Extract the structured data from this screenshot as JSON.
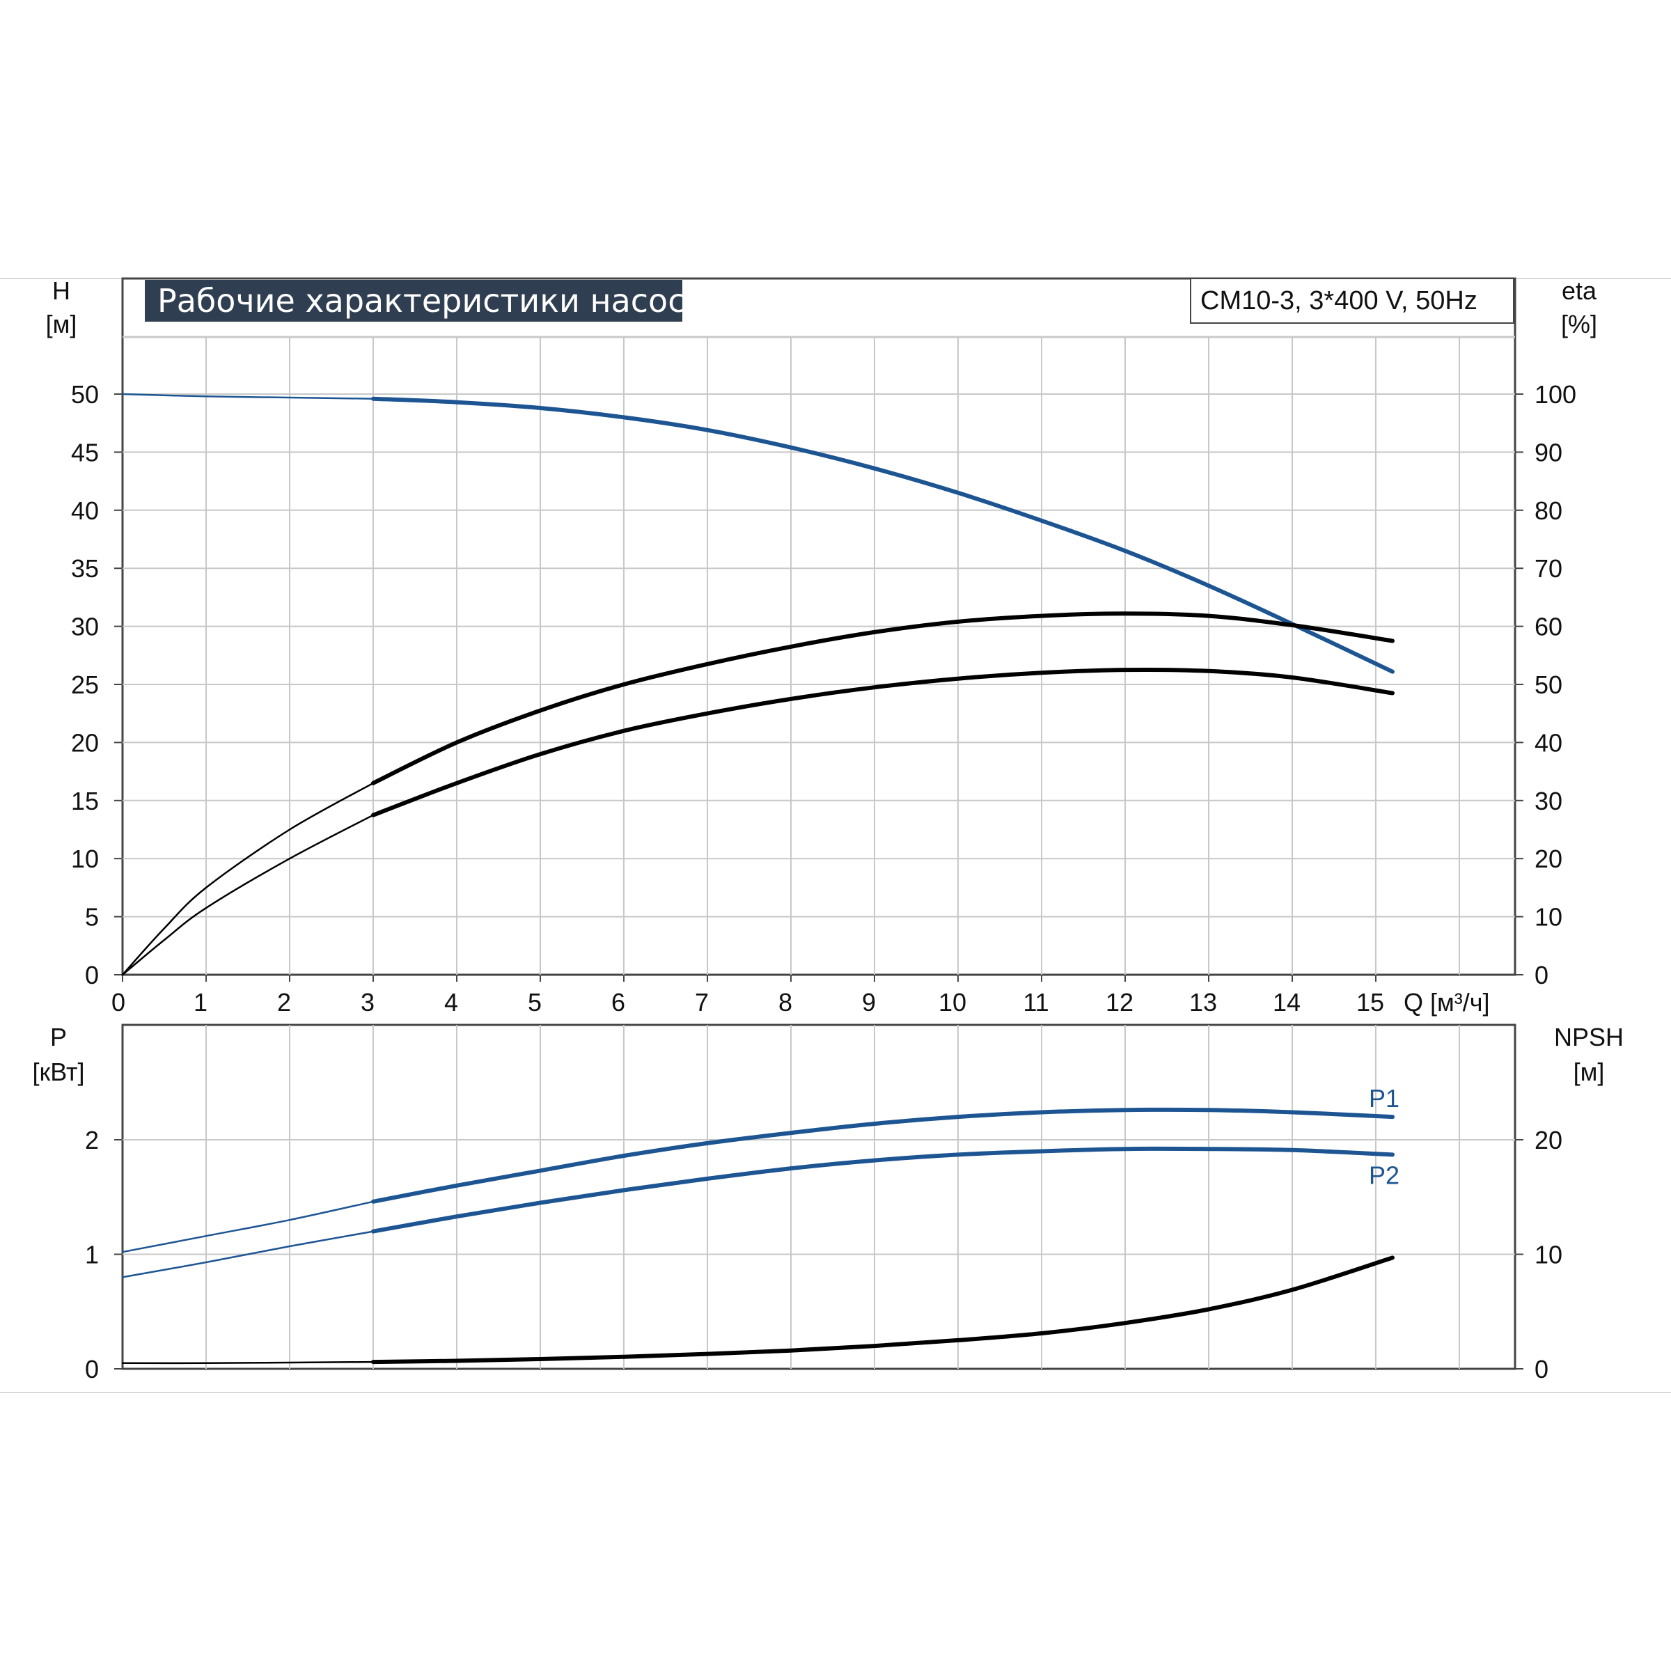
{
  "title": "Рабочие характеристики насоса",
  "model": "CM10-3, 3*400 V, 50Hz",
  "colors": {
    "blue": "#1d5593",
    "black": "#000000",
    "grid": "#c8c8c8",
    "title_bg": "#2f3e50"
  },
  "chart_data": [
    {
      "panel": "top",
      "type": "line",
      "x_label": "Q [м³/ч]",
      "x_ticks": [
        "0",
        "1",
        "2",
        "3",
        "4",
        "5",
        "6",
        "7",
        "8",
        "9",
        "10",
        "11",
        "12",
        "13",
        "14",
        "15"
      ],
      "xlim": [
        0,
        16.5
      ],
      "y_left_label": [
        "H",
        "[м]"
      ],
      "y_left_ticks": [
        "0",
        "5",
        "10",
        "15",
        "20",
        "25",
        "30",
        "35",
        "40",
        "45",
        "50"
      ],
      "y_left_lim": [
        0,
        55
      ],
      "y_right_label": [
        "eta",
        "[%]"
      ],
      "y_right_ticks": [
        "0",
        "10",
        "20",
        "30",
        "40",
        "50",
        "60",
        "70",
        "80",
        "90",
        "100"
      ],
      "y_right_lim": [
        0,
        110
      ],
      "grid": true,
      "series": [
        {
          "name": "",
          "axis": "left",
          "color": "#1d5593",
          "dashed_before": 3,
          "x": [
            0,
            1,
            2,
            3,
            4,
            5,
            6,
            7,
            8,
            9,
            10,
            11,
            12,
            13,
            14,
            15.2
          ],
          "y": [
            50,
            49.8,
            49.7,
            49.6,
            49.3,
            48.8,
            48.0,
            46.9,
            45.4,
            43.6,
            41.5,
            39.1,
            36.5,
            33.5,
            30.2,
            26.1
          ]
        },
        {
          "name": "",
          "axis": "right",
          "color": "#000000",
          "dashed_before": 3,
          "x": [
            0,
            0.5,
            1,
            2,
            3,
            4,
            5,
            6,
            7,
            8,
            9,
            10,
            11,
            12,
            13,
            14,
            15.2
          ],
          "y": [
            0,
            8,
            15,
            25,
            33,
            40,
            45.5,
            50,
            53.5,
            56.5,
            59,
            60.8,
            61.8,
            62.2,
            61.8,
            60.2,
            57.5
          ]
        },
        {
          "name": "",
          "axis": "right",
          "color": "#000000",
          "dashed_before": 3,
          "x": [
            0,
            0.5,
            1,
            2,
            3,
            4,
            5,
            6,
            7,
            8,
            9,
            10,
            11,
            12,
            13,
            14,
            15.2
          ],
          "y": [
            0,
            6,
            11.5,
            20,
            27.5,
            33,
            38,
            42,
            45,
            47.5,
            49.5,
            51,
            52,
            52.5,
            52.3,
            51.2,
            48.5
          ]
        }
      ]
    },
    {
      "panel": "bottom",
      "type": "line",
      "x_ticks": [],
      "xlim": [
        0,
        16.5
      ],
      "y_left_label": [
        "P",
        "[кВт]"
      ],
      "y_left_ticks": [
        "0",
        "1",
        "2"
      ],
      "y_left_lim": [
        0,
        3
      ],
      "y_right_label": [
        "NPSH",
        "[м]"
      ],
      "y_right_ticks": [
        "0",
        "10",
        "20"
      ],
      "y_right_lim": [
        0,
        30
      ],
      "grid": true,
      "series": [
        {
          "name": "P1",
          "axis": "left",
          "color": "#1d5593",
          "dashed_before": 3,
          "x": [
            0,
            1,
            2,
            3,
            4,
            5,
            6,
            7,
            8,
            9,
            10,
            11,
            12,
            13,
            14,
            15.2
          ],
          "y": [
            1.02,
            1.16,
            1.3,
            1.46,
            1.6,
            1.73,
            1.86,
            1.97,
            2.06,
            2.14,
            2.2,
            2.24,
            2.26,
            2.26,
            2.24,
            2.2
          ]
        },
        {
          "name": "P2",
          "axis": "left",
          "color": "#1d5593",
          "dashed_before": 3,
          "x": [
            0,
            1,
            2,
            3,
            4,
            5,
            6,
            7,
            8,
            9,
            10,
            11,
            12,
            13,
            14,
            15.2
          ],
          "y": [
            0.8,
            0.93,
            1.07,
            1.2,
            1.33,
            1.45,
            1.56,
            1.66,
            1.75,
            1.82,
            1.87,
            1.9,
            1.92,
            1.92,
            1.91,
            1.87
          ]
        },
        {
          "name": "",
          "axis": "right",
          "color": "#000000",
          "dashed_before": 3,
          "x": [
            0,
            1,
            2,
            3,
            4,
            5,
            6,
            7,
            8,
            9,
            10,
            11,
            12,
            13,
            14,
            15.2
          ],
          "y": [
            0.5,
            0.5,
            0.55,
            0.6,
            0.7,
            0.85,
            1.05,
            1.3,
            1.6,
            2.0,
            2.5,
            3.1,
            4.0,
            5.2,
            6.9,
            9.7
          ]
        }
      ]
    }
  ]
}
